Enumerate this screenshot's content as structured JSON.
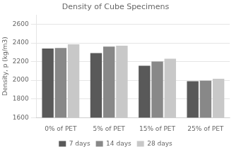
{
  "chart_data": {
    "type": "bar",
    "title": "Density of Cube Specimens",
    "ylabel": "Density, p (kg/m3)",
    "categories": [
      "0% of PET",
      "5% of PET",
      "15% of PET",
      "25% of PET"
    ],
    "series": [
      {
        "name": "7 days",
        "color": "#595959",
        "values": [
          2340,
          2290,
          2155,
          1990
        ]
      },
      {
        "name": "14 days",
        "color": "#888888",
        "values": [
          2345,
          2360,
          2200,
          1995
        ]
      },
      {
        "name": "28 days",
        "color": "#c8c8c8",
        "values": [
          2385,
          2370,
          2230,
          2015
        ]
      }
    ],
    "ylim": [
      1600,
      2700
    ],
    "yticks": [
      1600,
      1800,
      2000,
      2200,
      2400,
      2600
    ],
    "grid": true,
    "legend": "bottom"
  }
}
